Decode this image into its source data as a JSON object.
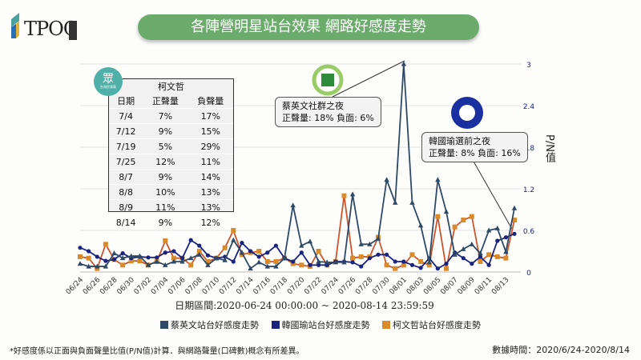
{
  "header": {
    "logo_text": "TPOC",
    "title": "各陣營明星站台效果 網路好感度走勢"
  },
  "table": {
    "badge": "眾",
    "badge_sub": "台灣民眾黨",
    "title": "柯文哲",
    "columns": [
      "日期",
      "正聲量",
      "負聲量"
    ],
    "rows": [
      [
        "7/4",
        "7%",
        "17%"
      ],
      [
        "7/12",
        "9%",
        "15%"
      ],
      [
        "7/19",
        "5%",
        "29%"
      ],
      [
        "7/25",
        "12%",
        "11%"
      ],
      [
        "8/7",
        "9%",
        "14%"
      ],
      [
        "8/8",
        "10%",
        "13%"
      ],
      [
        "8/9",
        "11%",
        "13%"
      ],
      [
        "8/14",
        "9%",
        "12%"
      ]
    ]
  },
  "annotations": [
    {
      "title": "蔡英文社群之夜",
      "text": "正聲量: 18% 負面: 6%"
    },
    {
      "title": "韓國瑜選前之夜",
      "text": "正聲量: 8% 負面: 16%"
    }
  ],
  "date_range": "日期區間:2020-06-24 00:00:00 ~ 2020-08-14 23:59:59",
  "footnote": "*好感度係以正面與負面聲量比值(P/N值)計算．與網路聲量(口碑數)概念有所差異。",
  "data_time": "數據時間：2020/6/24-2020/8/14",
  "colors": {
    "tsai": "#2e4a66",
    "han": "#1a237e",
    "ko": "#d98a2b",
    "banner": "#6bab6b"
  },
  "chart_data": {
    "type": "line",
    "ylabel": "P/N值",
    "ylim": [
      0,
      3
    ],
    "yticks": [
      "0",
      "0.6",
      "1.2",
      "1.8",
      "2.4",
      "3"
    ],
    "grid": true,
    "legend_position": "bottom",
    "xtick_labels": [
      "06/24",
      "06/26",
      "06/28",
      "06/30",
      "07/02",
      "07/04",
      "07/06",
      "07/08",
      "07/10",
      "07/12",
      "07/14",
      "07/16",
      "07/18",
      "07/20",
      "07/22",
      "07/24",
      "07/26",
      "07/28",
      "07/30",
      "08/01",
      "08/03",
      "08/05",
      "08/07",
      "08/09",
      "08/11",
      "08/13"
    ],
    "series": [
      {
        "name": "蔡英文站台好感度走勢",
        "key": "tsai",
        "marker": "triangle",
        "values": [
          0.12,
          0.08,
          0.08,
          0.08,
          0.27,
          0.2,
          0.23,
          0.23,
          0.1,
          0.15,
          0.1,
          0.15,
          0.15,
          0.2,
          0.25,
          0.1,
          0.2,
          0.17,
          0.46,
          0.28,
          0.05,
          0.14,
          0.08,
          0.08,
          0.2,
          0.96,
          0.38,
          0.44,
          0.15,
          0.14,
          0.14,
          0.14,
          1.12,
          0.4,
          0.4,
          0.48,
          1.33,
          1.0,
          3.0,
          1.0,
          0.67,
          0.14,
          1.33,
          0.87,
          0.25,
          0.33,
          0.4,
          0.27,
          0.6,
          0.63,
          0.29,
          0.92
        ]
      },
      {
        "name": "韓國瑜站台好感度走勢",
        "key": "han",
        "marker": "circle",
        "values": [
          0.35,
          0.3,
          0.22,
          0.16,
          0.18,
          0.27,
          0.2,
          0.22,
          0.21,
          0.21,
          0.28,
          0.3,
          0.2,
          0.46,
          0.38,
          0.24,
          0.2,
          0.22,
          0.15,
          0.42,
          0.3,
          0.22,
          0.28,
          0.38,
          0.2,
          0.15,
          0.28,
          0.1,
          0.1,
          0.1,
          0.15,
          0.15,
          0.14,
          0.08,
          0.2,
          0.25,
          0.25,
          0.15,
          0.15,
          0.1,
          0.06,
          0.2,
          0.05,
          0.12,
          0.28,
          0.2,
          0.12,
          0.22,
          0.1,
          0.45,
          0.5,
          0.55
        ]
      },
      {
        "name": "柯文哲站台好感度走勢",
        "key": "ko",
        "marker": "square",
        "values": [
          0.22,
          0.2,
          0.05,
          0.4,
          0.18,
          0.1,
          0.16,
          0.16,
          0.1,
          0.15,
          0.45,
          0.2,
          0.2,
          0.1,
          0.3,
          0.15,
          0.2,
          0.35,
          0.6,
          0.25,
          0.28,
          0.3,
          0.15,
          0.15,
          0.2,
          0.12,
          0.1,
          0.08,
          0.3,
          0.1,
          0.15,
          1.1,
          0.2,
          0.22,
          0.22,
          0.5,
          0.1,
          0.05,
          0.1,
          0.25,
          0.15,
          0.1,
          0.8,
          0.05,
          0.65,
          0.75,
          0.8,
          0.15,
          0.25,
          0.22,
          0.2,
          0.75
        ]
      }
    ]
  }
}
